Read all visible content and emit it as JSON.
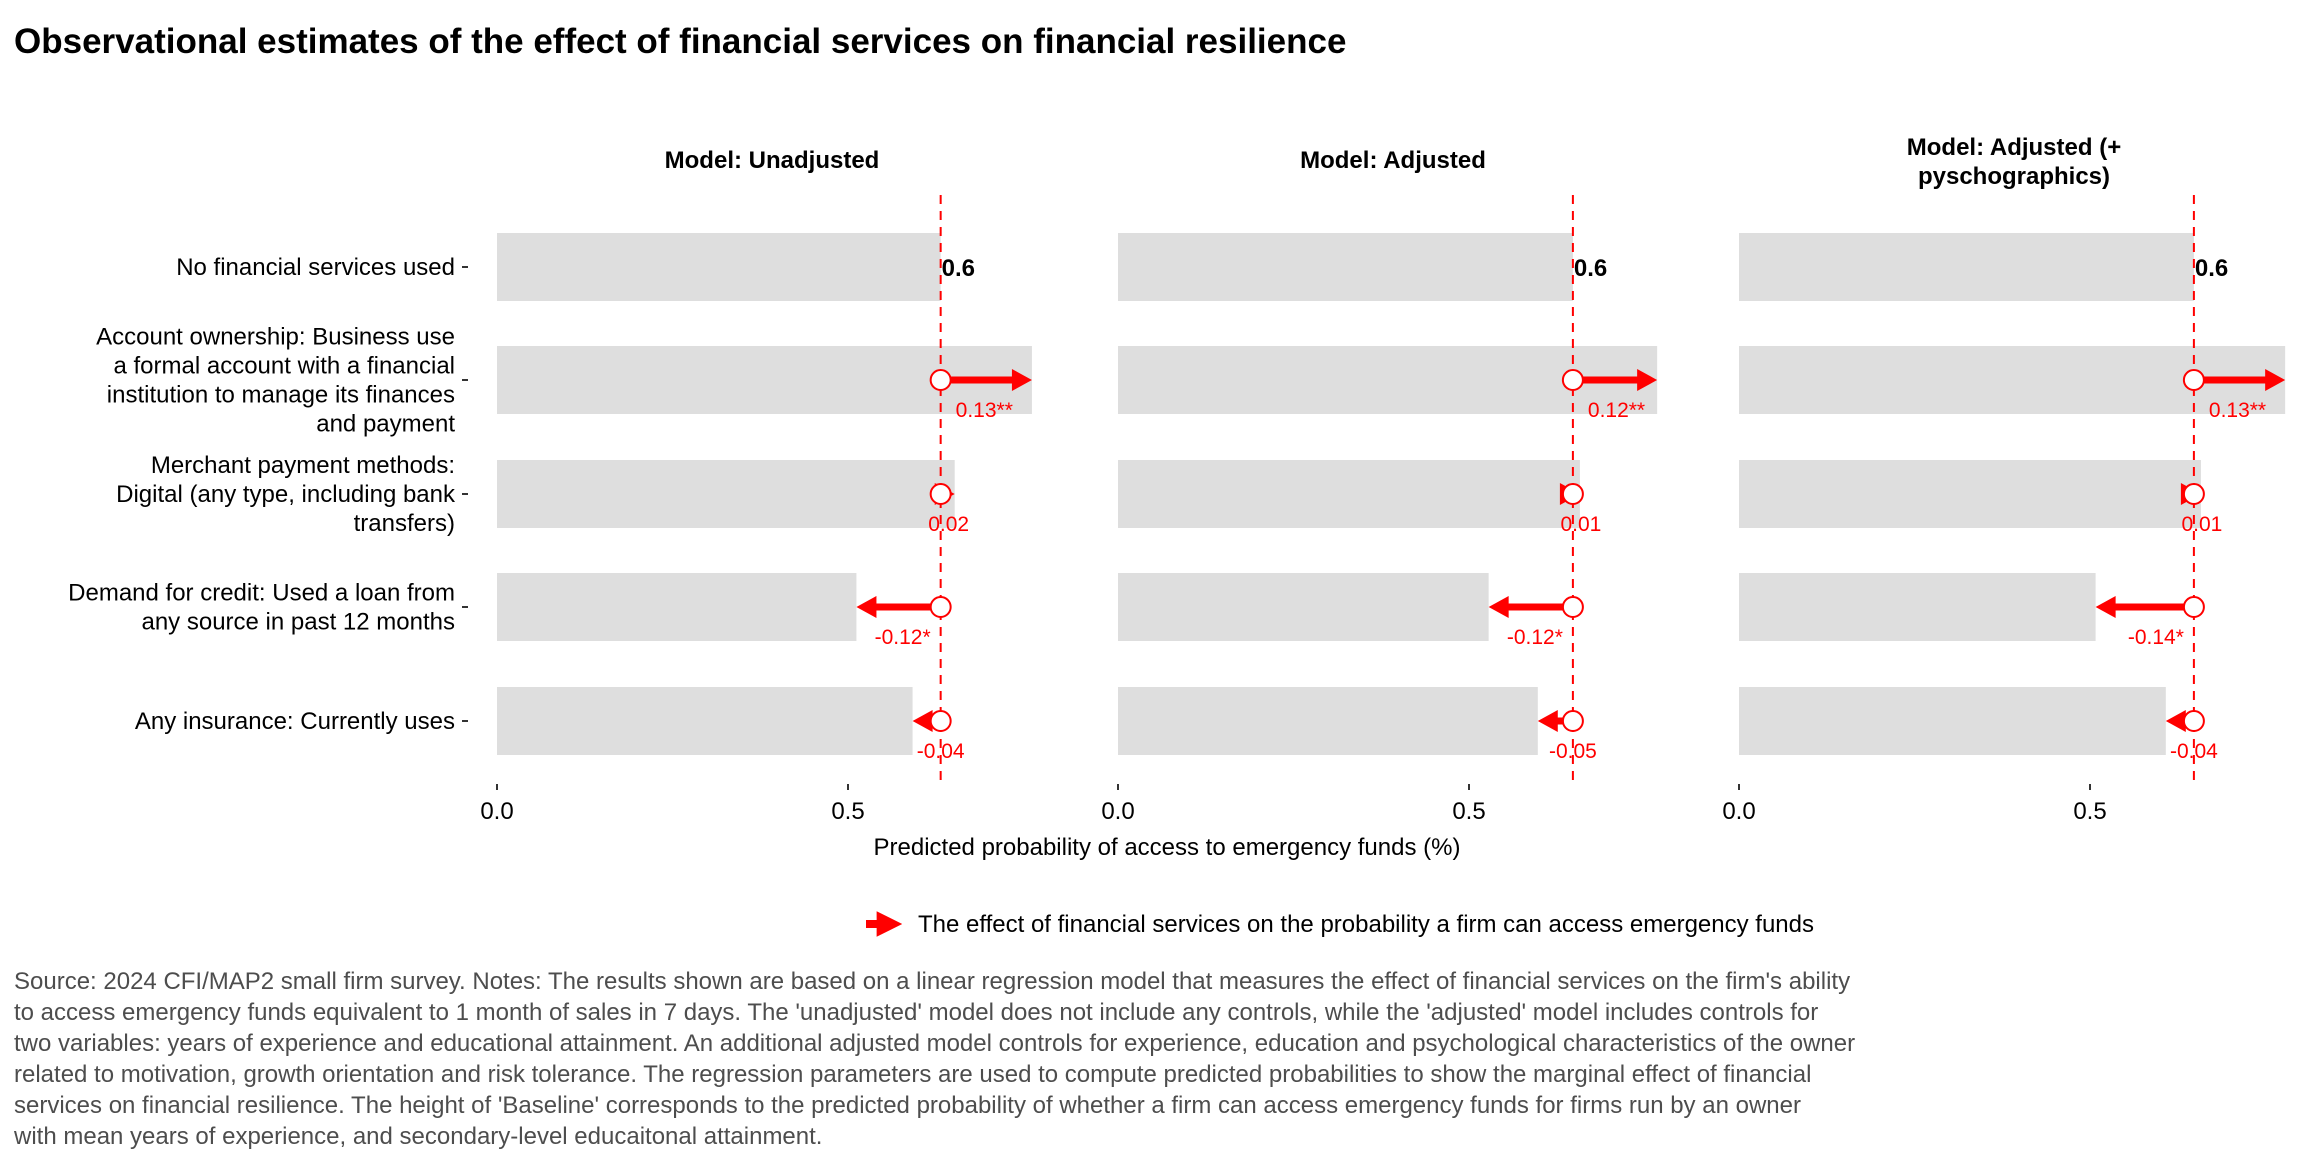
{
  "title": "Observational estimates of the effect of financial services on financial resilience",
  "legend_label": "The effect of financial services on the probability a firm can access emergency funds",
  "caption_lines": [
    "Source: 2024 CFI/MAP2 small firm survey. Notes: The results shown are based on a linear regression model that measures the effect of financial services on the firm's ability",
    "to access emergency funds equivalent to 1 month of sales in 7 days. The 'unadjusted' model does not include any controls, while the 'adjusted' model includes controls for",
    "two variables: years of experience and educational attainment. An additional adjusted model controls for experience, education and psychological characteristics of the owner",
    "related to motivation, growth orientation and risk tolerance. The regression parameters are used to compute predicted probabilities to show the marginal effect of financial",
    "services on financial resilience. The height of 'Baseline' corresponds to the predicted probability of whether a firm can access emergency funds for firms run by an owner",
    "with mean years of experience, and secondary-level educaitonal attainment."
  ],
  "colors": {
    "bar": "#dedede",
    "effect": "#ff0000",
    "baseline_line": "#ff0000",
    "text": "#000000",
    "caption": "#4d4d4d"
  },
  "chart_data": {
    "type": "bar",
    "orientation": "horizontal",
    "xlabel": "Predicted probability of access to emergency funds (%)",
    "xlim": [
      0,
      0.77
    ],
    "xticks": [
      "0.0",
      "0.5"
    ],
    "row_labels": [
      [
        "No financial services used"
      ],
      [
        "Account ownership: Business use",
        "a formal account with a financial",
        "institution to manage its finances",
        "and payment"
      ],
      [
        "Merchant payment methods:",
        "Digital (any type, including bank",
        "transfers)"
      ],
      [
        "Demand for credit: Used a loan from",
        "any source in past 12 months"
      ],
      [
        "Any insurance: Currently uses"
      ]
    ],
    "panels": [
      {
        "title_lines": [
          "Model: Unadjusted"
        ],
        "baseline": 0.632,
        "baseline_label": "0.6",
        "effects": [
          0.13,
          0.02,
          -0.12,
          -0.04
        ],
        "effect_labels": [
          "0.13**",
          "0.02",
          "-0.12*",
          "-0.04"
        ]
      },
      {
        "title_lines": [
          "Model: Adjusted"
        ],
        "baseline": 0.648,
        "baseline_label": "0.6",
        "effects": [
          0.12,
          0.01,
          -0.12,
          -0.05
        ],
        "effect_labels": [
          "0.12**",
          "0.01",
          "-0.12*",
          "-0.05"
        ]
      },
      {
        "title_lines": [
          "Model: Adjusted (+",
          "pyschographics)"
        ],
        "baseline": 0.648,
        "baseline_label": "0.6",
        "effects": [
          0.13,
          0.01,
          -0.14,
          -0.04
        ],
        "effect_labels": [
          "0.13**",
          "0.01",
          "-0.14*",
          "-0.04"
        ]
      }
    ]
  }
}
